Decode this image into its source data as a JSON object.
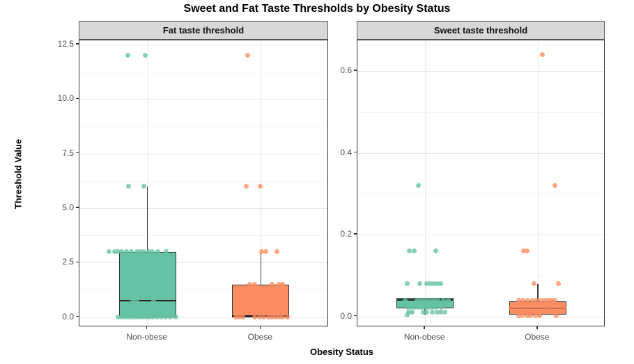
{
  "title": "Sweet and Fat Taste Thresholds by Obesity Status",
  "y_axis_title": "Threshold Value",
  "x_axis_title": "Obesity Status",
  "colors": {
    "non_obese": "#66C2A5",
    "obese": "#FC8D62",
    "panel_border": "#333333",
    "strip_fill": "#d8d8d8",
    "grid_major": "#e7e7e7",
    "grid_minor": "#f4f4f4",
    "tick_label": "#4d4d4d",
    "median_line": "#222222",
    "background": "#ffffff"
  },
  "chart_data": [
    {
      "type": "boxplot",
      "facet_label": "Fat taste threshold",
      "categories": [
        "Non-obese",
        "Obese"
      ],
      "y_ticks": [
        0.0,
        2.5,
        5.0,
        7.5,
        10.0,
        12.5
      ],
      "y_tick_labels": [
        "0.0",
        "2.5",
        "5.0",
        "7.5",
        "10.0",
        "12.5"
      ],
      "ylim": [
        -0.46,
        12.69
      ],
      "grid": true,
      "legend": "none",
      "groups": [
        {
          "category": "Non-obese",
          "color_key": "non_obese",
          "box": {
            "whisker_low": 0,
            "q1": 0,
            "median": 0.75,
            "q3": 3,
            "whisker_high": 6
          },
          "points": [
            {
              "v": 12,
              "dx": -28
            },
            {
              "v": 12,
              "dx": -3
            },
            {
              "v": 6,
              "dx": -27
            },
            {
              "v": 6,
              "dx": -5
            },
            {
              "v": 3,
              "dx": -55
            },
            {
              "v": 3,
              "dx": -47
            },
            {
              "v": 3,
              "dx": -42
            },
            {
              "v": 3,
              "dx": -37
            },
            {
              "v": 3,
              "dx": -30
            },
            {
              "v": 3,
              "dx": -23
            },
            {
              "v": 3,
              "dx": -15
            },
            {
              "v": 3,
              "dx": -10
            },
            {
              "v": 3,
              "dx": -5
            },
            {
              "v": 3,
              "dx": 2
            },
            {
              "v": 3,
              "dx": 7
            },
            {
              "v": 3,
              "dx": 15
            },
            {
              "v": 3,
              "dx": 27
            },
            {
              "v": 1.5,
              "dx": -23
            },
            {
              "v": 1.5,
              "dx": -13
            },
            {
              "v": 1.5,
              "dx": 20
            },
            {
              "v": 0.75,
              "dx": -21
            },
            {
              "v": 0.75,
              "dx": -15
            },
            {
              "v": 0.75,
              "dx": 9
            },
            {
              "v": 0,
              "dx": -42
            },
            {
              "v": 0,
              "dx": -37
            },
            {
              "v": 0,
              "dx": -32
            },
            {
              "v": 0,
              "dx": -27
            },
            {
              "v": 0,
              "dx": -22
            },
            {
              "v": 0,
              "dx": -17
            },
            {
              "v": 0,
              "dx": -12
            },
            {
              "v": 0,
              "dx": -7
            },
            {
              "v": 0,
              "dx": -2
            },
            {
              "v": 0,
              "dx": 3
            },
            {
              "v": 0,
              "dx": 8
            },
            {
              "v": 0,
              "dx": 14
            },
            {
              "v": 0,
              "dx": 20
            },
            {
              "v": 0,
              "dx": 26
            },
            {
              "v": 0,
              "dx": 33
            },
            {
              "v": 0,
              "dx": 41
            }
          ]
        },
        {
          "category": "Obese",
          "color_key": "obese",
          "box": {
            "whisker_low": 0,
            "q1": 0,
            "median": 0,
            "q3": 1.5,
            "whisker_high": 3
          },
          "points": [
            {
              "v": 12,
              "dx": -19
            },
            {
              "v": 6,
              "dx": -21
            },
            {
              "v": 6,
              "dx": -1
            },
            {
              "v": 3,
              "dx": 1
            },
            {
              "v": 3,
              "dx": 7
            },
            {
              "v": 3,
              "dx": 23
            },
            {
              "v": 1.5,
              "dx": -16
            },
            {
              "v": 1.5,
              "dx": -9
            },
            {
              "v": 1.5,
              "dx": 16
            },
            {
              "v": 1.5,
              "dx": 26
            },
            {
              "v": 1.5,
              "dx": 31
            },
            {
              "v": 0.75,
              "dx": -21
            },
            {
              "v": 0.75,
              "dx": -9
            },
            {
              "v": 0.75,
              "dx": -4
            },
            {
              "v": 0.375,
              "dx": -19
            },
            {
              "v": 0.375,
              "dx": -14
            },
            {
              "v": 0,
              "dx": -36
            },
            {
              "v": 0,
              "dx": -31
            },
            {
              "v": 0,
              "dx": -26
            },
            {
              "v": 0,
              "dx": -9
            },
            {
              "v": 0,
              "dx": -2
            },
            {
              "v": 0,
              "dx": 4
            },
            {
              "v": 0,
              "dx": 11
            },
            {
              "v": 0,
              "dx": 16
            },
            {
              "v": 0,
              "dx": 21
            },
            {
              "v": 0,
              "dx": 26
            },
            {
              "v": 0,
              "dx": 31
            },
            {
              "v": 0,
              "dx": 38
            }
          ]
        }
      ]
    },
    {
      "type": "boxplot",
      "facet_label": "Sweet taste threshold",
      "categories": [
        "Non-obese",
        "Obese"
      ],
      "y_ticks": [
        0.0,
        0.2,
        0.4,
        0.6
      ],
      "y_tick_labels": [
        "0.0",
        "0.2",
        "0.4",
        "0.6"
      ],
      "ylim": [
        -0.026,
        0.675
      ],
      "grid": true,
      "legend": "none",
      "groups": [
        {
          "category": "Non-obese",
          "color_key": "non_obese",
          "box": {
            "whisker_low": 0.005,
            "q1": 0.02,
            "median": 0.04,
            "q3": 0.045,
            "whisker_high": 0.045
          },
          "points": [
            {
              "v": 0.32,
              "dx": -10
            },
            {
              "v": 0.16,
              "dx": -23
            },
            {
              "v": 0.16,
              "dx": -16
            },
            {
              "v": 0.16,
              "dx": 15
            },
            {
              "v": 0.08,
              "dx": -26
            },
            {
              "v": 0.08,
              "dx": -8
            },
            {
              "v": 0.08,
              "dx": 2
            },
            {
              "v": 0.08,
              "dx": 7
            },
            {
              "v": 0.08,
              "dx": 12
            },
            {
              "v": 0.08,
              "dx": 17
            },
            {
              "v": 0.08,
              "dx": 22
            },
            {
              "v": 0.04,
              "dx": -29
            },
            {
              "v": 0.04,
              "dx": -12
            },
            {
              "v": 0.04,
              "dx": -7
            },
            {
              "v": 0.04,
              "dx": -2
            },
            {
              "v": 0.04,
              "dx": 3
            },
            {
              "v": 0.04,
              "dx": 8
            },
            {
              "v": 0.04,
              "dx": 13
            },
            {
              "v": 0.04,
              "dx": 18
            },
            {
              "v": 0.04,
              "dx": 26
            },
            {
              "v": 0.04,
              "dx": 33
            },
            {
              "v": 0.022,
              "dx": -25
            },
            {
              "v": 0.022,
              "dx": -20
            },
            {
              "v": 0.022,
              "dx": -15
            },
            {
              "v": 0.022,
              "dx": -10
            },
            {
              "v": 0.022,
              "dx": -5
            },
            {
              "v": 0.022,
              "dx": 0
            },
            {
              "v": 0.022,
              "dx": 5
            },
            {
              "v": 0.022,
              "dx": 10
            },
            {
              "v": 0.022,
              "dx": 15
            },
            {
              "v": 0.022,
              "dx": 23
            },
            {
              "v": 0.01,
              "dx": -24
            },
            {
              "v": 0.01,
              "dx": -19
            },
            {
              "v": 0.01,
              "dx": -3
            },
            {
              "v": 0.01,
              "dx": 2
            },
            {
              "v": 0.01,
              "dx": 10
            },
            {
              "v": 0.01,
              "dx": 17
            },
            {
              "v": 0.01,
              "dx": 22
            },
            {
              "v": 0.01,
              "dx": 28
            },
            {
              "v": 0.003,
              "dx": -26
            }
          ]
        },
        {
          "category": "Obese",
          "color_key": "obese",
          "box": {
            "whisker_low": 0.005,
            "q1": 0.005,
            "median": 0.02,
            "q3": 0.037,
            "whisker_high": 0.08
          },
          "points": [
            {
              "v": 0.64,
              "dx": 7
            },
            {
              "v": 0.32,
              "dx": 25
            },
            {
              "v": 0.16,
              "dx": -20
            },
            {
              "v": 0.16,
              "dx": -15
            },
            {
              "v": 0.08,
              "dx": -5
            },
            {
              "v": 0.08,
              "dx": 30
            },
            {
              "v": 0.04,
              "dx": -27
            },
            {
              "v": 0.04,
              "dx": -21
            },
            {
              "v": 0.04,
              "dx": -14
            },
            {
              "v": 0.04,
              "dx": -7
            },
            {
              "v": 0.04,
              "dx": -1
            },
            {
              "v": 0.04,
              "dx": 5
            },
            {
              "v": 0.04,
              "dx": 11
            },
            {
              "v": 0.04,
              "dx": 16
            },
            {
              "v": 0.04,
              "dx": 20
            },
            {
              "v": 0.04,
              "dx": 25
            },
            {
              "v": 0.02,
              "dx": -38
            },
            {
              "v": 0.02,
              "dx": -31
            },
            {
              "v": 0.02,
              "dx": -24
            },
            {
              "v": 0.02,
              "dx": -17
            },
            {
              "v": 0.02,
              "dx": -10
            },
            {
              "v": 0.02,
              "dx": -3
            },
            {
              "v": 0.02,
              "dx": 4
            },
            {
              "v": 0.02,
              "dx": 11
            },
            {
              "v": 0.02,
              "dx": 18
            },
            {
              "v": 0.02,
              "dx": 25
            },
            {
              "v": 0.02,
              "dx": 32
            },
            {
              "v": 0.02,
              "dx": 38
            },
            {
              "v": 0.002,
              "dx": -27
            },
            {
              "v": 0.002,
              "dx": -22
            },
            {
              "v": 0.002,
              "dx": -15
            },
            {
              "v": 0.002,
              "dx": -10
            },
            {
              "v": 0.002,
              "dx": -3
            },
            {
              "v": 0.002,
              "dx": 3
            },
            {
              "v": 0.002,
              "dx": 27
            }
          ]
        }
      ]
    }
  ]
}
